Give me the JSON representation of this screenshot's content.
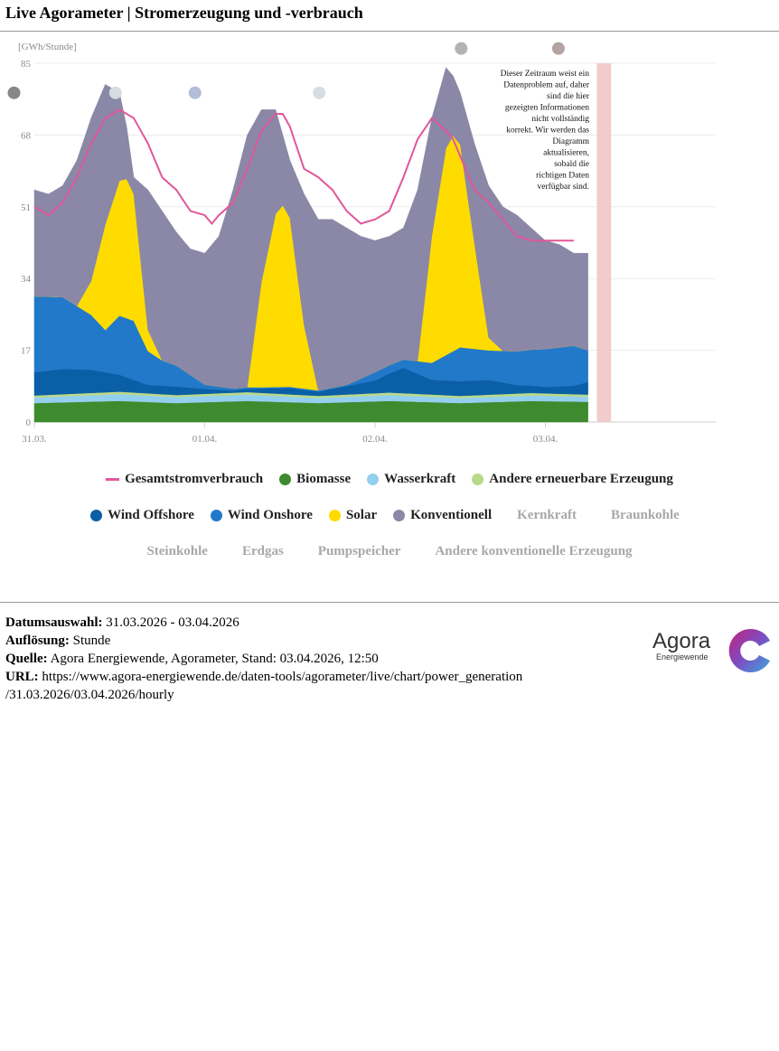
{
  "title": "Live Agorameter | Stromerzeugung und -verbrauch",
  "chart_data": {
    "type": "area",
    "unit_label": "[GWh/Stunde]",
    "ylim": [
      0,
      85
    ],
    "y_ticks": [
      0,
      17,
      34,
      51,
      68,
      85
    ],
    "x_ticks": [
      {
        "label": "31.03.",
        "hour": 0
      },
      {
        "label": "01.04.",
        "hour": 24
      },
      {
        "label": "02.04.",
        "hour": 48
      },
      {
        "label": "03.04.",
        "hour": 72
      }
    ],
    "x_max_hours": 96,
    "hours": 79,
    "grid": true,
    "legend_position": "bottom",
    "data_problem_note": "Dieser Zeitraum weist ein Datenproblem auf, daher sind die hier gezeigten Informationen nicht vollständig korrekt. Wir werden das Diagramm aktualisieren, sobald die richtigen Daten verfügbar sind.",
    "data_problem_range_hours": [
      79,
      81
    ],
    "series": [
      {
        "name": "Biomasse",
        "color": "#3e8a2e",
        "role": "stack",
        "keys": [
          0,
          12,
          20,
          30,
          40,
          50,
          60,
          70,
          78
        ],
        "values": [
          4.5,
          5.0,
          4.5,
          5.0,
          4.5,
          5.0,
          4.5,
          5.0,
          4.8
        ]
      },
      {
        "name": "Wasserkraft",
        "color": "#93d0ef",
        "role": "stack",
        "keys": [
          0,
          12,
          20,
          30,
          40,
          50,
          60,
          70,
          78
        ],
        "values": [
          1.3,
          1.6,
          1.4,
          1.5,
          1.2,
          1.4,
          1.2,
          1.3,
          1.2
        ]
      },
      {
        "name": "Andere erneuerbare Erzeugung",
        "color": "#b9d98a",
        "role": "stack",
        "keys": [
          0,
          12,
          20,
          30,
          40,
          50,
          60,
          70,
          78
        ],
        "values": [
          0.5,
          0.6,
          0.5,
          0.6,
          0.5,
          0.6,
          0.5,
          0.6,
          0.5
        ]
      },
      {
        "name": "Wind Offshore",
        "color": "#0b5fa6",
        "role": "stack",
        "keys": [
          0,
          4,
          8,
          12,
          16,
          20,
          24,
          28,
          32,
          36,
          40,
          44,
          48,
          52,
          56,
          60,
          64,
          68,
          72,
          76,
          78
        ],
        "values": [
          5.5,
          6.0,
          5.5,
          4.0,
          2.0,
          2.0,
          1.2,
          0.5,
          1.0,
          1.5,
          1.0,
          2.0,
          3.0,
          6.0,
          3.5,
          3.5,
          3.5,
          2.0,
          1.5,
          2.0,
          3.0
        ]
      },
      {
        "name": "Wind Onshore",
        "color": "#2279c9",
        "role": "stack",
        "keys": [
          0,
          4,
          8,
          10,
          12,
          14,
          16,
          18,
          20,
          24,
          28,
          32,
          36,
          40,
          44,
          48,
          52,
          56,
          60,
          64,
          68,
          72,
          76,
          78
        ],
        "values": [
          18.0,
          17.0,
          13.0,
          10.0,
          14.0,
          14.0,
          8.0,
          6.0,
          5.0,
          1.0,
          0.5,
          0.3,
          0.3,
          0.3,
          0.3,
          2.0,
          2.0,
          4.0,
          8.0,
          7.0,
          8.0,
          9.0,
          9.5,
          7.5
        ]
      },
      {
        "name": "Solar",
        "color": "#ffdc00",
        "role": "stack",
        "keys": [
          0,
          6,
          8,
          10,
          12,
          13,
          14,
          16,
          18,
          24,
          30,
          32,
          34,
          35,
          36,
          38,
          40,
          42,
          48,
          54,
          56,
          58,
          59,
          60,
          62,
          64,
          66,
          72,
          78
        ],
        "values": [
          0,
          0,
          8,
          25,
          32,
          33,
          30,
          5,
          0,
          0,
          0,
          25,
          41,
          43,
          40,
          15,
          0,
          0,
          0,
          0,
          30,
          49,
          51,
          48,
          25,
          3,
          0,
          0,
          0
        ]
      },
      {
        "name": "Konventionell",
        "color": "#8a88a6",
        "role": "total",
        "keys": [
          0,
          2,
          4,
          6,
          8,
          10,
          12,
          13,
          14,
          16,
          18,
          20,
          22,
          24,
          26,
          28,
          30,
          32,
          34,
          35,
          36,
          38,
          40,
          42,
          44,
          46,
          48,
          50,
          52,
          54,
          56,
          58,
          59,
          60,
          62,
          64,
          66,
          68,
          70,
          72,
          74,
          76,
          78
        ],
        "values": [
          55,
          54,
          56,
          62,
          72,
          80,
          78,
          70,
          58,
          55,
          50,
          45,
          41,
          40,
          44,
          55,
          68,
          74,
          74,
          68,
          62,
          54,
          48,
          48,
          46,
          44,
          43,
          44,
          46,
          55,
          72,
          84,
          82,
          78,
          66,
          56,
          51,
          49,
          46,
          43,
          42,
          40,
          40
        ]
      },
      {
        "name": "Gesamtstromverbrauch",
        "color": "#e0579a",
        "role": "line",
        "keys": [
          0,
          2,
          4,
          6,
          8,
          10,
          12,
          13,
          14,
          16,
          18,
          20,
          22,
          24,
          25,
          26,
          28,
          30,
          32,
          34,
          35,
          36,
          38,
          40,
          42,
          44,
          46,
          48,
          50,
          52,
          54,
          56,
          58,
          59,
          60,
          62,
          64,
          66,
          68,
          70,
          72,
          74,
          76,
          78
        ],
        "values": [
          51,
          49,
          52,
          58,
          66,
          72,
          74,
          73,
          72,
          66,
          58,
          55,
          50,
          49,
          47,
          49,
          52,
          60,
          69,
          73,
          73,
          70,
          60,
          58,
          55,
          50,
          47,
          48,
          50,
          58,
          67,
          72,
          69,
          67,
          63,
          55,
          52,
          48,
          44,
          43,
          43,
          43,
          43
        ]
      }
    ],
    "legend": [
      {
        "name": "Gesamtstromverbrauch",
        "color": "#e0579a",
        "symbol": "line",
        "active": true
      },
      {
        "name": "Biomasse",
        "color": "#3e8a2e",
        "symbol": "dot",
        "active": true
      },
      {
        "name": "Wasserkraft",
        "color": "#93d0ef",
        "symbol": "dot",
        "active": true
      },
      {
        "name": "Andere erneuerbare Erzeugung",
        "color": "#b9d98a",
        "symbol": "dot",
        "active": true
      },
      {
        "name": "Wind Offshore",
        "color": "#0b5fa6",
        "symbol": "dot",
        "active": true
      },
      {
        "name": "Wind Onshore",
        "color": "#2279c9",
        "symbol": "dot",
        "active": true
      },
      {
        "name": "Solar",
        "color": "#ffdc00",
        "symbol": "dot",
        "active": true
      },
      {
        "name": "Konventionell",
        "color": "#8a88a6",
        "symbol": "dot",
        "active": true
      },
      {
        "name": "Kernkraft",
        "color": "#a8a8a8",
        "symbol": "none",
        "active": false
      },
      {
        "name": "Braunkohle",
        "color": "#a8a8a8",
        "symbol": "none",
        "active": false
      },
      {
        "name": "Steinkohle",
        "color": "#a8a8a8",
        "symbol": "none",
        "active": false
      },
      {
        "name": "Erdgas",
        "color": "#a8a8a8",
        "symbol": "none",
        "active": false
      },
      {
        "name": "Pumpspeicher",
        "color": "#a8a8a8",
        "symbol": "none",
        "active": false
      },
      {
        "name": "Andere konventionelle Erzeugung",
        "color": "#a8a8a8",
        "symbol": "none",
        "active": false
      }
    ],
    "markers": [
      {
        "hour": -3.5,
        "value": 78,
        "color": "#888888"
      },
      {
        "hour": 10.8,
        "value": 78,
        "color": "#d6dde2"
      },
      {
        "hour": 22.0,
        "value": 78,
        "color": "#b5bcd9"
      },
      {
        "hour": 39.5,
        "value": 78,
        "color": "#d6dde2"
      },
      {
        "hour": 59.5,
        "value": 88.5,
        "color": "#b3b3b3"
      },
      {
        "hour": 73.2,
        "value": 88.5,
        "color": "#b3a3a3"
      }
    ]
  },
  "footer": {
    "date_label": "Datumsauswahl:",
    "date_value": " 31.03.2026 - 03.04.2026",
    "resolution_label": "Auflösung:",
    "resolution_value": " Stunde",
    "source_label": "Quelle:",
    "source_value": " Agora Energiewende, Agorameter, Stand: 03.04.2026, 12:50",
    "url_label": "URL:",
    "url_value": " https://www.agora-energiewende.de/daten-tools/agorameter/live/chart/power_generation",
    "url_value_2": "/31.03.2026/03.04.2026/hourly"
  },
  "logo": {
    "name": "Agora",
    "subtitle": "Energiewende"
  }
}
